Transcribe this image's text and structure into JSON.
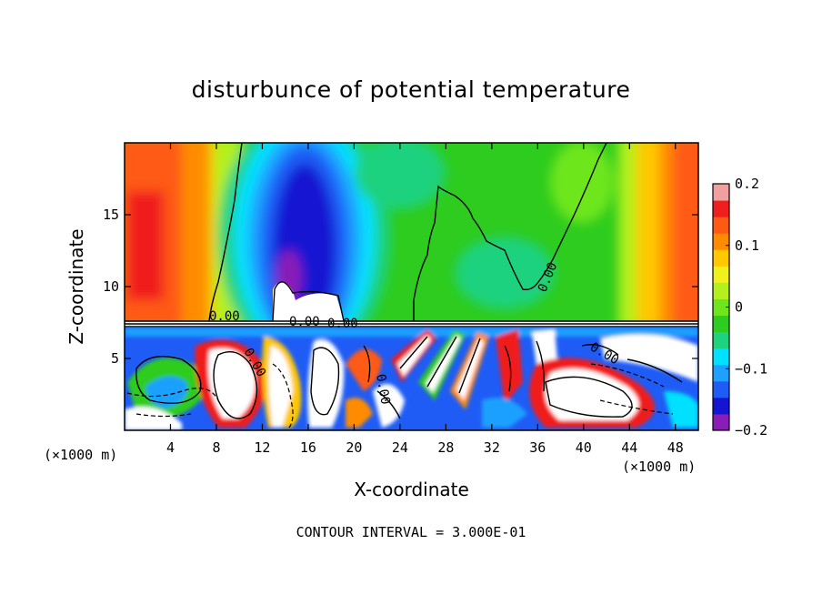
{
  "chart_data": {
    "type": "heatmap",
    "title": "disturbunce of potential temperature",
    "xlabel": "X-coordinate",
    "ylabel": "Z-coordinate",
    "x_unit": "(×1000 m)",
    "y_unit": "(×1000 m)",
    "xlim": [
      0,
      50
    ],
    "ylim": [
      0,
      20
    ],
    "x_ticks": [
      4,
      8,
      12,
      16,
      20,
      24,
      28,
      32,
      36,
      40,
      44,
      48
    ],
    "y_ticks": [
      5,
      10,
      15
    ],
    "colorbar": {
      "min": -0.2,
      "max": 0.2,
      "tick_labels": [
        "0.2",
        "0.1",
        "0",
        "−0.1",
        "−0.2"
      ],
      "tick_values": [
        0.2,
        0.1,
        0,
        -0.1,
        -0.2
      ],
      "colors": [
        "#8a1cb8",
        "#1414d2",
        "#1f5cf5",
        "#1ea0ff",
        "#00e0ff",
        "#1ed27e",
        "#2ecc1e",
        "#6ee61e",
        "#b4f01e",
        "#f0f01e",
        "#ffc800",
        "#ff8c00",
        "#ff5a14",
        "#f01e1e",
        "#f0a0a0"
      ]
    },
    "contour_labels": [
      "0.00",
      "0.00",
      "0.00",
      "0.00",
      "0.00",
      "0.00",
      "0.00"
    ],
    "interface_height": 7.5,
    "footnote": "CONTOUR INTERVAL = 3.000E-01"
  }
}
